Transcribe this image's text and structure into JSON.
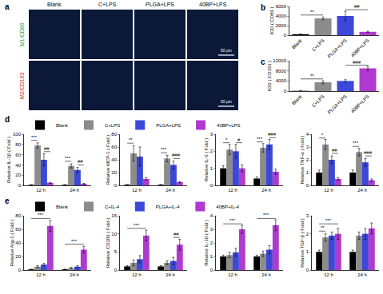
{
  "micrographs": {
    "label": "a",
    "columns": [
      "Blank",
      "C+LPS",
      "PLGA+LPS",
      "40BP+LPS"
    ],
    "rows": [
      {
        "label": "M1/CD86",
        "color": "#2a9d44"
      },
      {
        "label": "M2/CD163",
        "color": "#d42a2a"
      }
    ],
    "scale_bar": "50 μm"
  },
  "chart_data": [
    {
      "label": "b",
      "type": "bar",
      "categories": [
        "Blank",
        "C+LPS",
        "PLGA+LPS",
        "40BP+LPS"
      ],
      "values": [
        200,
        3500,
        4000,
        700
      ],
      "errors": [
        60,
        300,
        1000,
        120
      ],
      "colors": [
        "#000000",
        "#8c8c8c",
        "#3b48d8",
        "#b03ad0"
      ],
      "y_label": "IOD ( CD86 )",
      "ylim": [
        0,
        6000
      ],
      "yticks": [
        0,
        2000,
        4000,
        6000
      ],
      "significance": [
        {
          "text": "**",
          "from": 0,
          "to": 1,
          "y": 4200
        },
        {
          "text": "##",
          "from": 2,
          "to": 3,
          "y": 5300
        }
      ]
    },
    {
      "label": "c",
      "type": "bar",
      "categories": [
        "Blank",
        "C+LPS",
        "PLGA+LPS",
        "40BP+LPS"
      ],
      "values": [
        100,
        3500,
        4000,
        9000
      ],
      "errors": [
        40,
        600,
        500,
        800
      ],
      "colors": [
        "#000000",
        "#8c8c8c",
        "#3b48d8",
        "#b03ad0"
      ],
      "y_label": "IOD ( CD163 )",
      "ylim": [
        0,
        12000
      ],
      "yticks": [
        0,
        4000,
        8000,
        12000
      ],
      "significance": [
        {
          "text": "**",
          "from": 0,
          "to": 1,
          "y": 4800
        },
        {
          "text": "###",
          "from": 2,
          "to": 3,
          "y": 10200
        }
      ]
    },
    {
      "label": "d",
      "type": "bar",
      "legend": "top",
      "categories": [
        "12 h",
        "24 h"
      ],
      "series": [
        {
          "name": "Blank",
          "color": "#000000",
          "values": [
            1,
            1
          ],
          "errors": [
            0.5,
            0.5
          ]
        },
        {
          "name": "C+LPS",
          "color": "#8c8c8c",
          "values": [
            78,
            38
          ],
          "errors": [
            5,
            4
          ]
        },
        {
          "name": "PLGA+LPS",
          "color": "#3b48d8",
          "values": [
            50,
            30
          ],
          "errors": [
            12,
            5
          ]
        },
        {
          "name": "40BP+LPS",
          "color": "#b03ad0",
          "values": [
            5,
            3
          ],
          "errors": [
            1,
            1
          ]
        }
      ],
      "y_label": "Relative IL-1β ( Fold )",
      "ylim": [
        0,
        100
      ],
      "yticks": [
        0,
        20,
        40,
        60,
        80,
        100
      ],
      "significance": [
        {
          "text": "***",
          "group": 0,
          "from": 0,
          "to": 1,
          "y": 88
        },
        {
          "text": "##",
          "group": 0,
          "from": 2,
          "to": 3,
          "y": 66
        },
        {
          "text": "***",
          "group": 1,
          "from": 0,
          "to": 1,
          "y": 47
        },
        {
          "text": "##",
          "group": 1,
          "from": 2,
          "to": 3,
          "y": 40
        }
      ]
    },
    {
      "type": "bar",
      "categories": [
        "12 h",
        "24 h"
      ],
      "series": [
        {
          "name": "Blank",
          "color": "#000000",
          "values": [
            1,
            1
          ],
          "errors": [
            0.3,
            0.3
          ]
        },
        {
          "name": "C+LPS",
          "color": "#8c8c8c",
          "values": [
            50,
            42
          ],
          "errors": [
            12,
            5
          ]
        },
        {
          "name": "PLGA+LPS",
          "color": "#3b48d8",
          "values": [
            45,
            32
          ],
          "errors": [
            15,
            6
          ]
        },
        {
          "name": "40BP+LPS",
          "color": "#b03ad0",
          "values": [
            10,
            5
          ],
          "errors": [
            2,
            1
          ]
        }
      ],
      "y_label": "Relative MCP-1 ( Fold )",
      "ylim": [
        0,
        80
      ],
      "yticks": [
        0,
        20,
        40,
        60,
        80
      ],
      "significance": [
        {
          "text": "**",
          "group": 0,
          "from": 0,
          "to": 1,
          "y": 66
        },
        {
          "text": "***",
          "group": 1,
          "from": 0,
          "to": 1,
          "y": 51
        },
        {
          "text": "###",
          "group": 1,
          "from": 2,
          "to": 3,
          "y": 42
        }
      ]
    },
    {
      "type": "bar",
      "categories": [
        "12 h",
        "24 h"
      ],
      "series": [
        {
          "name": "Blank",
          "color": "#000000",
          "values": [
            1,
            0.4
          ],
          "errors": [
            0.15,
            0.1
          ]
        },
        {
          "name": "C+LPS",
          "color": "#8c8c8c",
          "values": [
            2.1,
            2.2
          ],
          "errors": [
            0.3,
            0.25
          ]
        },
        {
          "name": "PLGA+LPS",
          "color": "#3b48d8",
          "values": [
            2.0,
            2.4
          ],
          "errors": [
            0.4,
            0.3
          ]
        },
        {
          "name": "40BP+LPS",
          "color": "#b03ad0",
          "values": [
            1.0,
            0.8
          ],
          "errors": [
            0.2,
            0.15
          ]
        }
      ],
      "y_label": "Relative IL-6 ( Fold )",
      "ylim": [
        0,
        3
      ],
      "yticks": [
        0,
        1,
        2,
        3
      ],
      "significance": [
        {
          "text": "*",
          "group": 0,
          "from": 0,
          "to": 1,
          "y": 2.5
        },
        {
          "text": "#",
          "group": 0,
          "from": 2,
          "to": 3,
          "y": 2.5
        },
        {
          "text": "***",
          "group": 1,
          "from": 0,
          "to": 1,
          "y": 2.55
        },
        {
          "text": "###",
          "group": 1,
          "from": 2,
          "to": 3,
          "y": 2.8
        }
      ]
    },
    {
      "type": "bar",
      "categories": [
        "12 h",
        "24 h"
      ],
      "series": [
        {
          "name": "Blank",
          "color": "#000000",
          "values": [
            1,
            1
          ],
          "errors": [
            0.2,
            0.2
          ]
        },
        {
          "name": "C+LPS",
          "color": "#8c8c8c",
          "values": [
            3.2,
            2.6
          ],
          "errors": [
            0.4,
            0.3
          ]
        },
        {
          "name": "PLGA+LPS",
          "color": "#3b48d8",
          "values": [
            2.0,
            1.8
          ],
          "errors": [
            0.3,
            0.3
          ]
        },
        {
          "name": "40BP+LPS",
          "color": "#b03ad0",
          "values": [
            0.5,
            0.4
          ],
          "errors": [
            0.1,
            0.1
          ]
        }
      ],
      "y_label": "Relative TNF-α ( Fold )",
      "ylim": [
        0,
        4
      ],
      "yticks": [
        0,
        1,
        2,
        3,
        4
      ],
      "significance": [
        {
          "text": "*",
          "group": 0,
          "from": 0,
          "to": 1,
          "y": 3.7
        },
        {
          "text": "##",
          "group": 0,
          "from": 2,
          "to": 3,
          "y": 2.5
        },
        {
          "text": "***",
          "group": 1,
          "from": 0,
          "to": 1,
          "y": 3.05
        },
        {
          "text": "###",
          "group": 1,
          "from": 2,
          "to": 3,
          "y": 2.3
        }
      ]
    },
    {
      "label": "e",
      "type": "bar",
      "legend": "top",
      "categories": [
        "12 h",
        "24 h"
      ],
      "series": [
        {
          "name": "Blank",
          "color": "#000000",
          "values": [
            1,
            1
          ],
          "errors": [
            0.3,
            0.3
          ]
        },
        {
          "name": "C+IL-4",
          "color": "#8c8c8c",
          "values": [
            5,
            3
          ],
          "errors": [
            1.5,
            1
          ]
        },
        {
          "name": "PLGA+IL-4",
          "color": "#3b48d8",
          "values": [
            8,
            5
          ],
          "errors": [
            2,
            1.5
          ]
        },
        {
          "name": "40BP+IL-4",
          "color": "#b03ad0",
          "values": [
            65,
            30
          ],
          "errors": [
            8,
            5
          ]
        }
      ],
      "y_label": "Relative Arg-1 ( Fold )",
      "ylim": [
        0,
        80
      ],
      "yticks": [
        0,
        20,
        40,
        60,
        80
      ],
      "significance": [
        {
          "text": "***",
          "group": 0,
          "from": 0,
          "to": 3,
          "y": 76
        },
        {
          "text": "***",
          "group": 1,
          "from": 0,
          "to": 3,
          "y": 38
        }
      ]
    },
    {
      "type": "bar",
      "categories": [
        "12 h",
        "24 h"
      ],
      "series": [
        {
          "name": "Blank",
          "color": "#000000",
          "values": [
            1,
            1
          ],
          "errors": [
            0.2,
            0.2
          ]
        },
        {
          "name": "C+IL-4",
          "color": "#8c8c8c",
          "values": [
            2,
            2
          ],
          "errors": [
            0.8,
            0.5
          ]
        },
        {
          "name": "PLGA+IL-4",
          "color": "#3b48d8",
          "values": [
            3,
            2.5
          ],
          "errors": [
            1,
            1
          ]
        },
        {
          "name": "40BP+IL-4",
          "color": "#b03ad0",
          "values": [
            9.5,
            7
          ],
          "errors": [
            1.5,
            1.5
          ]
        }
      ],
      "y_label": "Relative CD206 ( Fold )",
      "ylim": [
        0,
        15
      ],
      "yticks": [
        0,
        5,
        10,
        15
      ],
      "significance": [
        {
          "text": "***",
          "group": 0,
          "from": 0,
          "to": 3,
          "y": 11.5
        },
        {
          "text": "##",
          "group": 1,
          "from": 2,
          "to": 3,
          "y": 9
        }
      ]
    },
    {
      "type": "bar",
      "categories": [
        "12 h",
        "24 h"
      ],
      "series": [
        {
          "name": "Blank",
          "color": "#000000",
          "values": [
            1,
            1
          ],
          "errors": [
            0.1,
            0.1
          ]
        },
        {
          "name": "C+IL-4",
          "color": "#8c8c8c",
          "values": [
            1.1,
            1.2
          ],
          "errors": [
            0.2,
            0.2
          ]
        },
        {
          "name": "PLGA+IL-4",
          "color": "#3b48d8",
          "values": [
            1.3,
            1.5
          ],
          "errors": [
            0.3,
            0.3
          ]
        },
        {
          "name": "40BP+IL-4",
          "color": "#b03ad0",
          "values": [
            3.0,
            3.3
          ],
          "errors": [
            0.3,
            0.4
          ]
        }
      ],
      "y_label": "Relative IL-10 ( Fold )",
      "ylim": [
        0,
        4
      ],
      "yticks": [
        0,
        1,
        2,
        3,
        4
      ],
      "significance": [
        {
          "text": "***",
          "group": 0,
          "from": 0,
          "to": 3,
          "y": 3.4
        },
        {
          "text": "***",
          "group": 1,
          "from": 0,
          "to": 3,
          "y": 3.8
        }
      ]
    },
    {
      "type": "bar",
      "categories": [
        "12 h",
        "24 h"
      ],
      "series": [
        {
          "name": "Blank",
          "color": "#000000",
          "values": [
            1,
            1
          ],
          "errors": [
            0.1,
            0.1
          ]
        },
        {
          "name": "C+IL-4",
          "color": "#8c8c8c",
          "values": [
            1.8,
            1.9
          ],
          "errors": [
            0.2,
            0.2
          ]
        },
        {
          "name": "PLGA+IL-4",
          "color": "#3b48d8",
          "values": [
            1.9,
            2.0
          ],
          "errors": [
            0.2,
            0.3
          ]
        },
        {
          "name": "40BP+IL-4",
          "color": "#b03ad0",
          "values": [
            2.0,
            2.3
          ],
          "errors": [
            0.3,
            0.3
          ]
        }
      ],
      "y_label": "Relative TGF-β ( Fold )",
      "ylim": [
        0,
        3
      ],
      "yticks": [
        0,
        1,
        2,
        3
      ],
      "significance": [
        {
          "text": "**",
          "group": 0,
          "from": 0,
          "to": 1,
          "y": 2.15
        },
        {
          "text": "***",
          "group": 0,
          "from": 0,
          "to": 3,
          "y": 2.55
        }
      ]
    }
  ]
}
